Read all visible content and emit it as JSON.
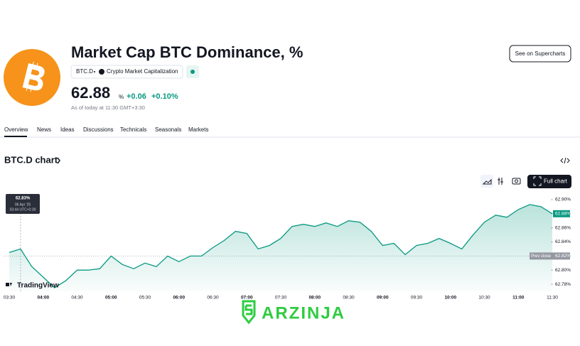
{
  "header": {
    "title": "Market Cap BTC Dominance, %",
    "symbol": "BTC.D",
    "source": "Crypto Market Capitalization",
    "price": "62.88",
    "unit": "%",
    "change": "+0.06",
    "change_pct": "+0.10%",
    "as_of": "As of today at 11:30 GMT+3:30",
    "button": "See on Supercharts"
  },
  "tabs": [
    "Overview",
    "News",
    "Ideas",
    "Discussions",
    "Technicals",
    "Seasonals",
    "Markets"
  ],
  "chart_section": {
    "title": "BTC.D chart",
    "full_chart": "Full chart",
    "brand": "TradingView"
  },
  "watermark": "ARZINJA",
  "chart_data": {
    "type": "line",
    "x": [
      "03:30",
      "03:40",
      "03:50",
      "04:00",
      "04:10",
      "04:20",
      "04:30",
      "04:40",
      "04:50",
      "05:00",
      "05:10",
      "05:20",
      "05:30",
      "05:40",
      "05:50",
      "06:00",
      "06:10",
      "06:20",
      "06:30",
      "06:40",
      "06:50",
      "07:00",
      "07:10",
      "07:20",
      "07:30",
      "07:40",
      "07:50",
      "08:00",
      "08:10",
      "08:20",
      "08:30",
      "08:40",
      "08:50",
      "09:00",
      "09:10",
      "09:20",
      "09:30",
      "09:40",
      "09:50",
      "10:00",
      "10:10",
      "10:20",
      "10:30",
      "10:40",
      "10:50",
      "11:00",
      "11:10",
      "11:20",
      "11:30"
    ],
    "series": [
      {
        "color": "#089981",
        "values": [
          62.825,
          62.83,
          62.805,
          62.79,
          62.775,
          62.785,
          62.8,
          62.8,
          62.802,
          62.82,
          62.808,
          62.802,
          62.81,
          62.805,
          62.82,
          62.812,
          62.82,
          62.82,
          62.832,
          62.842,
          62.855,
          62.852,
          62.83,
          62.835,
          62.845,
          62.862,
          62.865,
          62.862,
          62.867,
          62.862,
          62.87,
          62.868,
          62.855,
          62.835,
          62.838,
          62.822,
          62.835,
          62.838,
          62.845,
          62.838,
          62.83,
          62.85,
          62.868,
          62.878,
          62.875,
          62.886,
          62.893,
          62.89,
          62.88
        ]
      }
    ],
    "ylim": [
      62.77,
      62.906
    ],
    "yticks": [
      {
        "value": 62.78,
        "label": "62.78%"
      },
      {
        "value": 62.8,
        "label": "62.80%"
      },
      {
        "value": 62.82,
        "label": "62.82%"
      },
      {
        "value": 62.84,
        "label": "62.84%"
      },
      {
        "value": 62.86,
        "label": "62.86%"
      },
      {
        "value": 62.88,
        "label": "62.88%"
      },
      {
        "value": 62.9,
        "label": "62.90%"
      }
    ],
    "xticks": [
      "03:30",
      "04:00",
      "04:30",
      "05:00",
      "05:30",
      "06:00",
      "06:30",
      "07:00",
      "07:30",
      "08:00",
      "08:30",
      "09:00",
      "09:30",
      "10:00",
      "10:30",
      "11:00",
      "11:30"
    ],
    "last_price": {
      "value": 62.88,
      "label": "62.88%"
    },
    "prev_close": {
      "name": "Prev close",
      "value": 62.82,
      "label": "62.82%"
    },
    "tooltip": {
      "value": "62.83%",
      "date": "06 Apr '25",
      "time": "03:44 UTC+3:30"
    }
  }
}
